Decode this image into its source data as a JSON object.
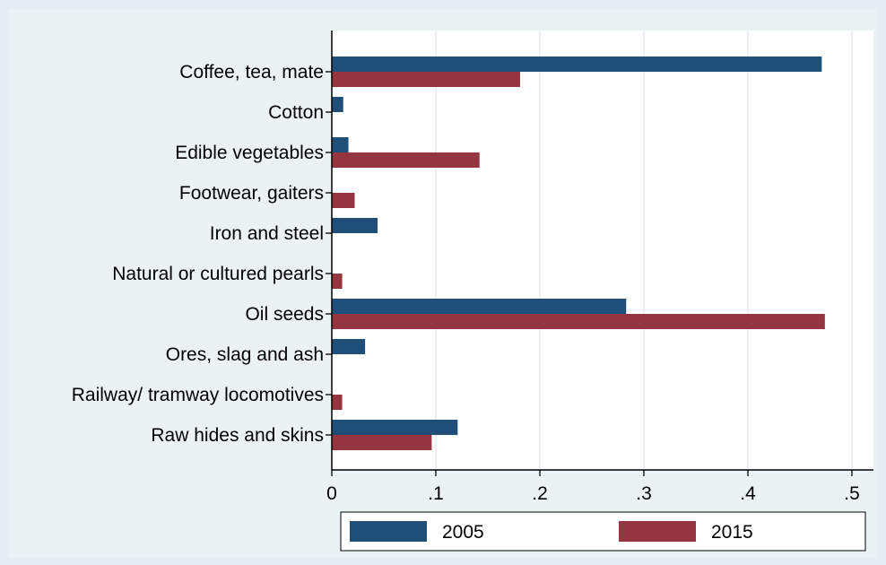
{
  "chart_data": {
    "type": "bar",
    "orientation": "horizontal",
    "title": "",
    "xlabel": "",
    "ylabel": "",
    "categories": [
      "Coffee, tea, mate",
      "Cotton",
      "Edible vegetables",
      "Footwear, gaiters",
      "Iron and steel",
      "Natural or cultured pearls",
      "Oil seeds",
      "Ores, slag and ash",
      "Railway/ tramway locomotives",
      "Raw hides and skins"
    ],
    "series": [
      {
        "name": "2005",
        "color": "#1f4e79",
        "values": [
          0.471,
          0.011,
          0.016,
          0.0,
          0.044,
          0.0,
          0.283,
          0.032,
          0.0,
          0.121
        ]
      },
      {
        "name": "2015",
        "color": "#943540",
        "values": [
          0.181,
          0.0,
          0.142,
          0.022,
          0.0,
          0.01,
          0.474,
          0.0,
          0.01,
          0.096
        ]
      }
    ],
    "xlim": [
      0,
      0.5
    ],
    "xticks": [
      0,
      0.1,
      0.2,
      0.3,
      0.4,
      0.5
    ],
    "xtick_labels": [
      "0",
      ".1",
      ".2",
      ".3",
      ".4",
      ".5"
    ],
    "grid": "vertical",
    "legend_position": "bottom"
  }
}
